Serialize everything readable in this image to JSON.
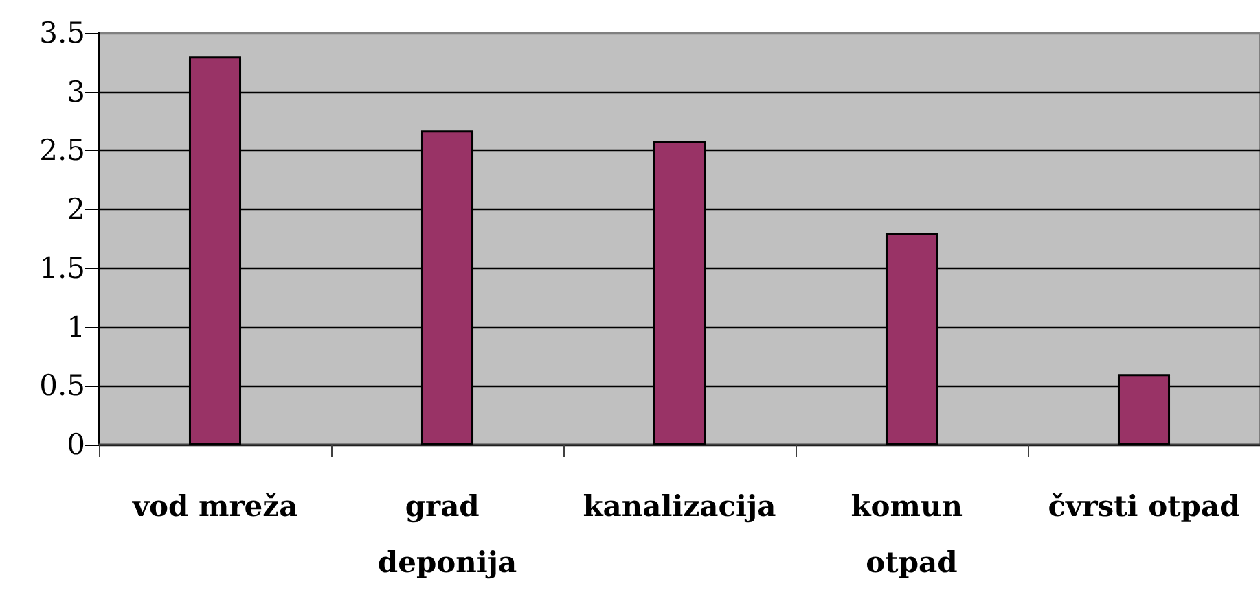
{
  "chart_data": {
    "type": "bar",
    "categories": [
      "vod mreža",
      "grad deponija",
      "kanalizacija",
      "komun otpad",
      "čvrsti otpad"
    ],
    "values": [
      3.3,
      2.67,
      2.58,
      1.8,
      0.6
    ],
    "color": "#993366",
    "ylim": [
      0,
      3.5
    ],
    "yticks": [
      0,
      0.5,
      1,
      1.5,
      2,
      2.5,
      3,
      3.5
    ],
    "grid": "y"
  }
}
